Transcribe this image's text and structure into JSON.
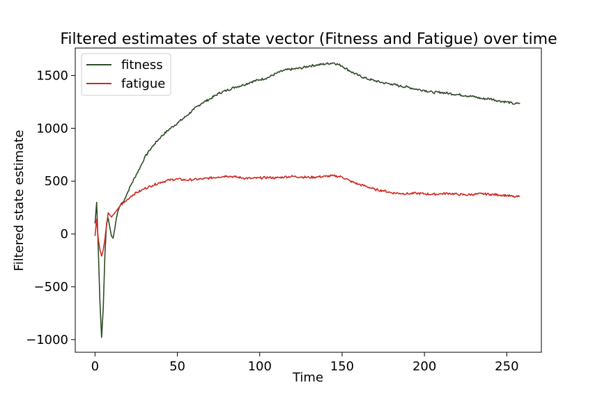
{
  "chart_data": {
    "type": "line",
    "title": "Filtered estimates of state vector (Fitness and Fatigue) over time",
    "xlabel": "Time",
    "ylabel": "Filtered state estimate",
    "xlim": [
      -12,
      271
    ],
    "ylim": [
      -1120,
      1760
    ],
    "xticks": [
      0,
      50,
      100,
      150,
      200,
      250
    ],
    "yticks": [
      -1000,
      -500,
      0,
      500,
      1000,
      1500
    ],
    "ytick_labels": [
      "−1000",
      "−500",
      "0",
      "500",
      "1000",
      "1500"
    ],
    "xtick_labels": [
      "0",
      "50",
      "100",
      "150",
      "200",
      "250"
    ],
    "grid": false,
    "legend_position": "top-left",
    "series": [
      {
        "name": "fitness",
        "color": "#2e4a26",
        "x": [
          0,
          1,
          2,
          3,
          4,
          5,
          6,
          7,
          8,
          9,
          10,
          11,
          12,
          13,
          14,
          15,
          16,
          17,
          18,
          20,
          22,
          25,
          28,
          30,
          33,
          36,
          40,
          45,
          50,
          55,
          60,
          65,
          70,
          75,
          80,
          85,
          90,
          95,
          100,
          105,
          110,
          115,
          120,
          125,
          130,
          135,
          140,
          145,
          150,
          155,
          160,
          165,
          170,
          175,
          180,
          185,
          190,
          195,
          200,
          205,
          210,
          215,
          220,
          225,
          230,
          235,
          240,
          245,
          250,
          255,
          258
        ],
        "y": [
          100,
          300,
          -150,
          -650,
          -980,
          -700,
          -200,
          100,
          150,
          60,
          -20,
          -40,
          50,
          150,
          220,
          260,
          290,
          300,
          330,
          400,
          470,
          560,
          650,
          720,
          790,
          850,
          920,
          990,
          1050,
          1110,
          1180,
          1240,
          1280,
          1330,
          1360,
          1390,
          1410,
          1440,
          1460,
          1480,
          1520,
          1550,
          1560,
          1570,
          1590,
          1600,
          1610,
          1620,
          1590,
          1540,
          1500,
          1470,
          1450,
          1430,
          1420,
          1400,
          1390,
          1370,
          1360,
          1340,
          1340,
          1330,
          1320,
          1310,
          1300,
          1280,
          1280,
          1260,
          1250,
          1230,
          1240
        ]
      },
      {
        "name": "fatigue",
        "color": "#cc2a22",
        "x": [
          0,
          1,
          2,
          3,
          4,
          5,
          6,
          7,
          8,
          9,
          10,
          12,
          14,
          16,
          18,
          20,
          22,
          25,
          28,
          30,
          35,
          40,
          45,
          50,
          55,
          60,
          65,
          70,
          75,
          80,
          85,
          90,
          95,
          100,
          105,
          110,
          115,
          120,
          125,
          130,
          135,
          140,
          145,
          150,
          155,
          160,
          165,
          170,
          175,
          180,
          185,
          190,
          195,
          200,
          205,
          210,
          215,
          220,
          225,
          230,
          235,
          240,
          245,
          250,
          255,
          258
        ],
        "y": [
          -20,
          140,
          -50,
          -150,
          -210,
          -150,
          -50,
          80,
          200,
          180,
          160,
          200,
          240,
          280,
          300,
          330,
          360,
          390,
          410,
          430,
          460,
          490,
          510,
          520,
          510,
          515,
          520,
          530,
          540,
          550,
          540,
          530,
          525,
          530,
          535,
          530,
          540,
          545,
          540,
          535,
          540,
          545,
          550,
          540,
          500,
          470,
          450,
          420,
          410,
          390,
          385,
          380,
          385,
          380,
          375,
          380,
          385,
          375,
          370,
          375,
          380,
          375,
          370,
          365,
          350,
          355
        ]
      }
    ]
  }
}
